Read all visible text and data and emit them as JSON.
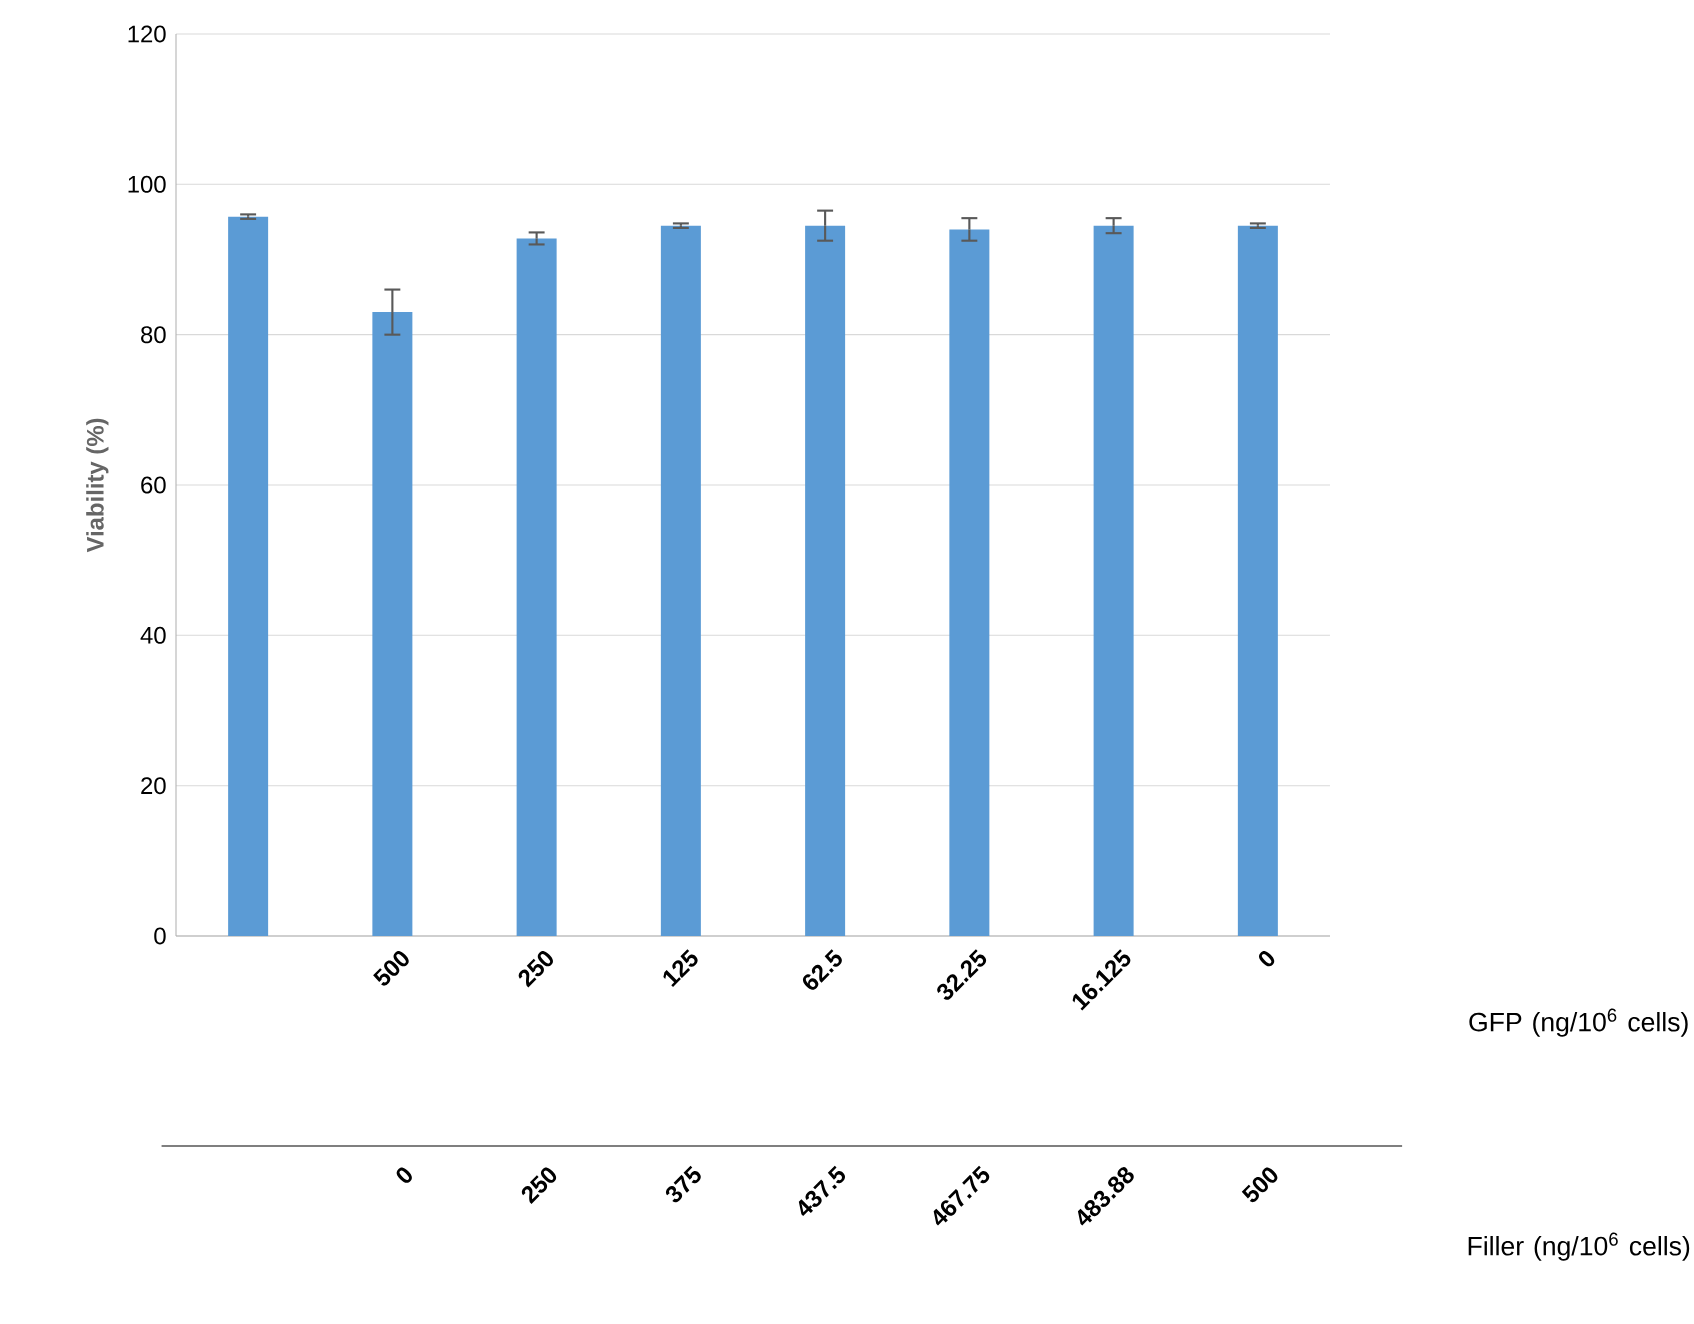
{
  "chart_data": {
    "type": "bar",
    "categories": [
      null,
      "500",
      "250",
      "125",
      "62.5",
      "32.25",
      "16.125",
      "0"
    ],
    "values": [
      95.7,
      83,
      92.8,
      94.5,
      94.5,
      94,
      94.5,
      94.5
    ],
    "errors": [
      0.3,
      3,
      0.8,
      0.3,
      2,
      1.5,
      1,
      0.3
    ],
    "color": "#5b9bd5",
    "ylabel": "Viability (%)",
    "annotations": [
      "GFP (ng/10$^{6}$ cells)",
      "0",
      "250",
      "375",
      "437.5",
      "467.75",
      "483.88",
      "500",
      "Filler (ng/10$^{6}$ cells)"
    ],
    "ylim": [
      0,
      120
    ],
    "yticks": [
      0,
      20,
      40,
      60,
      80,
      100,
      120
    ],
    "grid": "y"
  }
}
